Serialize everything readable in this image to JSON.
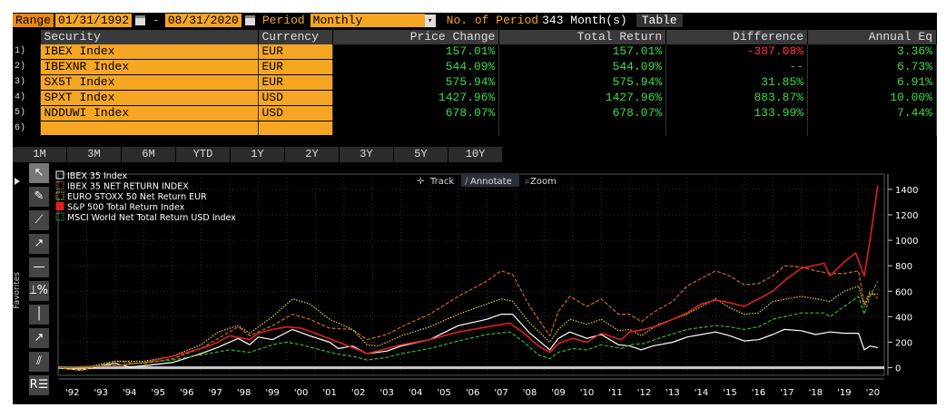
{
  "range_bar": {
    "range_label": "Range",
    "start_date": "01/31/1992",
    "separator": "-",
    "end_date": "08/31/2020",
    "period_label": "Period",
    "period_value": "Monthly",
    "num_periods_label": "No. of Period",
    "num_periods_value": "343 Month(s)",
    "table_button": "Table"
  },
  "table": {
    "headers": [
      "Security",
      "Currency",
      "Price Change",
      "Total Return",
      "Difference",
      "Annual Eq"
    ],
    "rows": [
      {
        "num": "1)",
        "security": "IBEX Index",
        "currency": "EUR",
        "price_change": "157.01%",
        "total_return": "157.01%",
        "difference": "-387.08%",
        "annual_eq": "3.36%"
      },
      {
        "num": "2)",
        "security": "IBEXNR Index",
        "currency": "EUR",
        "price_change": "544.09%",
        "total_return": "544.09%",
        "difference": "--",
        "annual_eq": "6.73%"
      },
      {
        "num": "3)",
        "security": "SX5T Index",
        "currency": "EUR",
        "price_change": "575.94%",
        "total_return": "575.94%",
        "difference": "31.85%",
        "annual_eq": "6.91%"
      },
      {
        "num": "4)",
        "security": "SPXT Index",
        "currency": "USD",
        "price_change": "1427.96%",
        "total_return": "1427.96%",
        "difference": "883.87%",
        "annual_eq": "10.00%"
      },
      {
        "num": "5)",
        "security": "NDDUWI Index",
        "currency": "USD",
        "price_change": "678.07%",
        "total_return": "678.07%",
        "difference": "133.99%",
        "annual_eq": "7.44%"
      },
      {
        "num": "6)",
        "security": "",
        "currency": "",
        "price_change": "",
        "total_return": "",
        "difference": "",
        "annual_eq": ""
      }
    ]
  },
  "period_tabs": [
    "1M",
    "3M",
    "6M",
    "YTD",
    "1Y",
    "2Y",
    "3Y",
    "5Y",
    "10Y"
  ],
  "chart_controls": {
    "track": "Track",
    "annotate": "Annotate",
    "zoom": "Zoom"
  },
  "side": {
    "favorites_label": "Favorites"
  },
  "tools": [
    {
      "name": "pointer-icon",
      "glyph": "↖"
    },
    {
      "name": "pen-icon",
      "glyph": "✎"
    },
    {
      "name": "trend-line-icon",
      "glyph": "⟋"
    },
    {
      "name": "ray-icon",
      "glyph": "↗"
    },
    {
      "name": "horizontal-line-icon",
      "glyph": "—"
    },
    {
      "name": "percent-tool-icon",
      "glyph": "⟘%"
    },
    {
      "name": "vertical-line-icon",
      "glyph": "│"
    },
    {
      "name": "arrow-line-icon",
      "glyph": "↗"
    },
    {
      "name": "channel-icon",
      "glyph": "⫽"
    },
    {
      "name": "indicators-icon",
      "glyph": "R☰"
    }
  ],
  "colors": {
    "ibex": "#ffffff",
    "ibexnr": "#d2691e",
    "sx5t": "#e6d23c",
    "spxt": "#e02020",
    "ndduwi": "#2eb82e",
    "axis_text": "#ffffff",
    "grid": "#333333"
  },
  "chart_data": {
    "type": "line",
    "title": "",
    "xlabel": "",
    "ylabel": "",
    "ylim": [
      -60,
      1520
    ],
    "xlim": [
      1992.0,
      2020.9
    ],
    "yticks": [
      0,
      200,
      400,
      600,
      800,
      1000,
      1200,
      1400
    ],
    "xtick_labels": [
      "'92",
      "'93",
      "'94",
      "'95",
      "'96",
      "'97",
      "'98",
      "'99",
      "'00",
      "'01",
      "'02",
      "'03",
      "'04",
      "'05",
      "'06",
      "'07",
      "'08",
      "'09",
      "'10",
      "'11",
      "'12",
      "'13",
      "'14",
      "'15",
      "'16",
      "'17",
      "'18",
      "'19",
      "'20"
    ],
    "xtick_values": [
      1992.5,
      1993.5,
      1994.5,
      1995.5,
      1996.5,
      1997.5,
      1998.5,
      1999.5,
      2000.5,
      2001.5,
      2002.5,
      2003.5,
      2004.5,
      2005.5,
      2006.5,
      2007.5,
      2008.5,
      2009.5,
      2010.5,
      2011.5,
      2012.5,
      2013.5,
      2014.5,
      2015.5,
      2016.5,
      2017.5,
      2018.5,
      2019.5,
      2020.5
    ],
    "legend_position": "top-left",
    "series": [
      {
        "key": "ibex",
        "name": "IBEX 35 Index",
        "style": "solid",
        "x": [
          1992.0,
          1992.8,
          1993.5,
          1994.0,
          1994.5,
          1995.0,
          1996.0,
          1997.0,
          1997.6,
          1998.3,
          1998.7,
          1999.0,
          1999.5,
          2000.2,
          2000.8,
          2001.5,
          2001.8,
          2002.3,
          2002.8,
          2003.5,
          2004.0,
          2005.0,
          2006.0,
          2007.0,
          2007.5,
          2007.9,
          2008.5,
          2009.2,
          2009.5,
          2009.9,
          2010.5,
          2011.0,
          2011.6,
          2012.0,
          2012.4,
          2012.8,
          2013.5,
          2014.0,
          2014.5,
          2015.0,
          2015.5,
          2016.0,
          2016.5,
          2017.0,
          2017.4,
          2018.0,
          2018.5,
          2019.0,
          2019.5,
          2020.0,
          2020.2,
          2020.4,
          2020.67
        ],
        "y": [
          0,
          -20,
          15,
          35,
          5,
          15,
          40,
          110,
          160,
          230,
          180,
          240,
          220,
          300,
          250,
          200,
          150,
          170,
          110,
          130,
          170,
          220,
          330,
          380,
          420,
          420,
          270,
          140,
          230,
          280,
          230,
          260,
          180,
          170,
          140,
          170,
          200,
          240,
          260,
          280,
          250,
          210,
          220,
          260,
          300,
          290,
          260,
          280,
          270,
          270,
          140,
          170,
          157
        ]
      },
      {
        "key": "ibexnr",
        "name": "IBEX 35 NET RETURN INDEX",
        "style": "dashed",
        "x": [
          1992.0,
          1992.8,
          1993.5,
          1994.0,
          1995.0,
          1996.0,
          1997.0,
          1997.6,
          1998.3,
          1998.7,
          1999.5,
          2000.2,
          2000.8,
          2001.5,
          2002.3,
          2002.8,
          2003.5,
          2004.0,
          2005.0,
          2006.0,
          2006.5,
          2007.0,
          2007.5,
          2007.9,
          2008.5,
          2009.2,
          2009.5,
          2009.9,
          2010.5,
          2011.0,
          2011.6,
          2012.0,
          2012.4,
          2012.8,
          2013.5,
          2014.0,
          2014.5,
          2015.0,
          2015.5,
          2016.0,
          2016.5,
          2017.0,
          2017.4,
          2018.0,
          2018.5,
          2019.0,
          2019.5,
          2020.0,
          2020.2,
          2020.4,
          2020.67
        ],
        "y": [
          0,
          -20,
          20,
          50,
          30,
          70,
          150,
          230,
          320,
          250,
          330,
          420,
          380,
          310,
          300,
          220,
          260,
          320,
          420,
          560,
          620,
          680,
          760,
          730,
          480,
          250,
          440,
          560,
          480,
          540,
          420,
          420,
          360,
          430,
          520,
          640,
          700,
          760,
          720,
          650,
          660,
          720,
          800,
          790,
          760,
          740,
          740,
          760,
          500,
          600,
          544
        ]
      },
      {
        "key": "sx5t",
        "name": "EURO STOXX 50 Net Return EUR",
        "style": "dotted",
        "x": [
          1992.0,
          1992.8,
          1993.5,
          1994.0,
          1995.0,
          1996.0,
          1997.0,
          1997.6,
          1998.3,
          1998.7,
          1999.5,
          2000.2,
          2000.8,
          2001.5,
          2002.3,
          2002.8,
          2003.2,
          2004.0,
          2005.0,
          2006.0,
          2007.0,
          2007.5,
          2007.9,
          2008.5,
          2009.2,
          2009.5,
          2009.9,
          2010.5,
          2011.0,
          2011.6,
          2012.0,
          2012.4,
          2013.0,
          2014.0,
          2015.0,
          2015.5,
          2016.0,
          2016.5,
          2017.0,
          2018.0,
          2018.5,
          2019.0,
          2019.5,
          2020.0,
          2020.2,
          2020.4,
          2020.67
        ],
        "y": [
          0,
          -10,
          30,
          50,
          50,
          90,
          180,
          280,
          330,
          270,
          400,
          540,
          500,
          380,
          300,
          180,
          170,
          250,
          320,
          420,
          500,
          540,
          520,
          350,
          200,
          300,
          380,
          340,
          380,
          290,
          300,
          250,
          340,
          420,
          540,
          470,
          420,
          430,
          520,
          560,
          540,
          520,
          600,
          640,
          480,
          580,
          576
        ]
      },
      {
        "key": "spxt",
        "name": "S&P 500 Total Return Index",
        "style": "solid",
        "x": [
          1992.0,
          1993.0,
          1994.0,
          1995.0,
          1996.0,
          1997.0,
          1997.5,
          1998.0,
          1998.7,
          1999.0,
          1999.5,
          2000.0,
          2000.5,
          2001.0,
          2001.7,
          2002.5,
          2002.8,
          2003.5,
          2004.0,
          2005.0,
          2006.0,
          2007.0,
          2007.8,
          2008.3,
          2008.8,
          2009.2,
          2009.5,
          2010.0,
          2010.5,
          2011.0,
          2011.7,
          2012.0,
          2012.5,
          2013.0,
          2014.0,
          2014.5,
          2015.0,
          2015.5,
          2016.0,
          2016.5,
          2017.0,
          2017.5,
          2018.0,
          2018.8,
          2019.0,
          2019.5,
          2019.9,
          2020.2,
          2020.4,
          2020.67
        ],
        "y": [
          0,
          10,
          15,
          40,
          90,
          150,
          190,
          250,
          220,
          270,
          300,
          320,
          310,
          270,
          210,
          140,
          110,
          150,
          180,
          220,
          280,
          320,
          350,
          270,
          170,
          120,
          190,
          230,
          200,
          270,
          220,
          280,
          300,
          330,
          430,
          500,
          530,
          510,
          480,
          540,
          600,
          700,
          780,
          820,
          720,
          830,
          900,
          720,
          1000,
          1428
        ]
      },
      {
        "key": "ndduwi",
        "name": "MSCI World Net Total Return USD Index",
        "style": "dashed",
        "x": [
          1992.0,
          1993.0,
          1994.0,
          1995.0,
          1996.0,
          1997.0,
          1998.0,
          1998.7,
          1999.5,
          2000.0,
          2000.5,
          2001.0,
          2001.7,
          2002.5,
          2002.8,
          2003.5,
          2004.0,
          2005.0,
          2006.0,
          2007.0,
          2007.8,
          2008.3,
          2008.8,
          2009.2,
          2009.5,
          2010.0,
          2010.5,
          2011.0,
          2011.7,
          2012.0,
          2012.5,
          2013.0,
          2014.0,
          2015.0,
          2015.5,
          2016.0,
          2016.5,
          2017.0,
          2018.0,
          2018.8,
          2019.0,
          2019.5,
          2020.0,
          2020.2,
          2020.4,
          2020.67
        ],
        "y": [
          0,
          5,
          20,
          40,
          60,
          100,
          140,
          120,
          180,
          200,
          180,
          150,
          110,
          80,
          60,
          80,
          110,
          150,
          210,
          260,
          280,
          200,
          100,
          70,
          120,
          150,
          140,
          180,
          150,
          180,
          190,
          230,
          300,
          330,
          320,
          300,
          320,
          380,
          430,
          430,
          400,
          480,
          560,
          420,
          560,
          678
        ]
      }
    ]
  }
}
